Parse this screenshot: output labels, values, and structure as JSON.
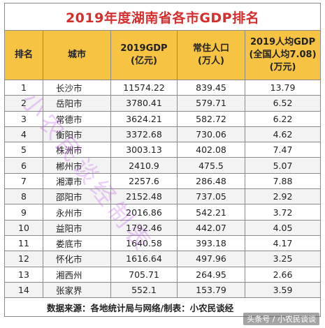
{
  "title": "2019年度湖南省各市GDP排名",
  "headers": {
    "rank": "排名",
    "city": "城市",
    "gdp_line1": "2019GDP",
    "gdp_line2": "(亿元)",
    "pop_line1": "常住人口",
    "pop_line2": "(万人)",
    "pc_line1": "2019人均GDP",
    "pc_line2": "(全国人均7.08)",
    "pc_line3": "(万元)"
  },
  "rows": [
    {
      "rank": "1",
      "city": "长沙市",
      "gdp": "11574.22",
      "pop": "839.45",
      "pc": "13.79"
    },
    {
      "rank": "2",
      "city": "岳阳市",
      "gdp": "3780.41",
      "pop": "579.71",
      "pc": "6.52"
    },
    {
      "rank": "3",
      "city": "常德市",
      "gdp": "3624.21",
      "pop": "582.72",
      "pc": "6.22"
    },
    {
      "rank": "4",
      "city": "衡阳市",
      "gdp": "3372.68",
      "pop": "730.06",
      "pc": "4.62"
    },
    {
      "rank": "5",
      "city": "株洲市",
      "gdp": "3003.13",
      "pop": "402.08",
      "pc": "7.47"
    },
    {
      "rank": "6",
      "city": "郴州市",
      "gdp": "2410.9",
      "pop": "475.5",
      "pc": "5.07"
    },
    {
      "rank": "7",
      "city": "湘潭市",
      "gdp": "2257.6",
      "pop": "286.48",
      "pc": "7.88"
    },
    {
      "rank": "8",
      "city": "邵阳市",
      "gdp": "2152.48",
      "pop": "737.05",
      "pc": "2.92"
    },
    {
      "rank": "9",
      "city": "永州市",
      "gdp": "2016.86",
      "pop": "542.21",
      "pc": "3.72"
    },
    {
      "rank": "10",
      "city": "益阳市",
      "gdp": "1792.46",
      "pop": "442.07",
      "pc": "4.05"
    },
    {
      "rank": "11",
      "city": "娄底市",
      "gdp": "1640.58",
      "pop": "393.18",
      "pc": "4.17"
    },
    {
      "rank": "12",
      "city": "怀化市",
      "gdp": "1616.64",
      "pop": "497.96",
      "pc": "3.25"
    },
    {
      "rank": "13",
      "city": "湘西州",
      "gdp": "705.71",
      "pop": "264.95",
      "pc": "2.66"
    },
    {
      "rank": "14",
      "city": "张家界",
      "gdp": "552.1",
      "pop": "153.79",
      "pc": "3.59"
    }
  ],
  "footer": "数据来源：各地统计局与网络/制表：小农民谈经",
  "watermark": "小农民谈经制表",
  "corner_mark": "头条号 / 小农民谈谈",
  "colors": {
    "title": "#d62d2d",
    "header_bg": "#f6c343",
    "watermark": "#be50e6"
  }
}
